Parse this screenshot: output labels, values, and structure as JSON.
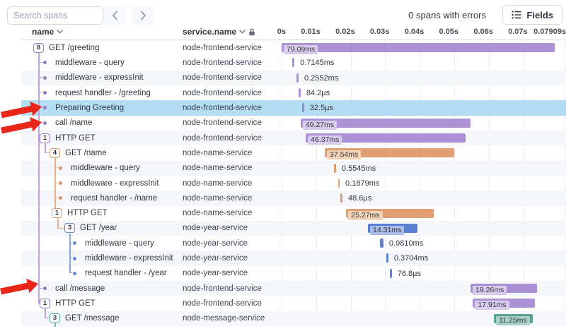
{
  "toolbar": {
    "search_placeholder": "Search spans",
    "errors_text": "0 spans with errors",
    "fields_label": "Fields"
  },
  "columns": {
    "name_label": "name",
    "service_label": "service.name"
  },
  "timeline": {
    "axis_ticks": [
      "0s",
      "0.01s",
      "0.02s",
      "0.03s",
      "0.04s",
      "0.05s",
      "0.06s",
      "0.07s",
      "0.07909s"
    ],
    "total_duration_ms": 79.09
  },
  "colors": {
    "purple_bar": "rgba(142,104,198,0.72)",
    "purple_chip": "#d8ccec",
    "purple_line": "#bda3dd",
    "purple_accent": "#9878c8",
    "orange_bar": "rgba(214,122,61,0.72)",
    "orange_chip": "#f2d3b6",
    "orange_line": "#eab38c",
    "orange_accent": "#dd9468",
    "blue_bar": "rgba(65,107,201,0.85)",
    "blue_chip": "#a9bce7",
    "blue_line": "#85a6de",
    "blue_accent": "#6289d2",
    "teal_bar": "rgba(49,141,119,0.80)",
    "teal_chip": "#a9d0c5",
    "teal_line": "#79baa8",
    "teal_accent": "#55a695",
    "highlight_row": "#b3ddf3",
    "annotation_arrow": "#e8261a"
  },
  "rows": [
    {
      "badge": "8",
      "color": "purple",
      "indent": 17,
      "name": "GET /greeting",
      "service": "node-frontend-service",
      "start_ms": 0,
      "duration_ms": 79.09,
      "duration_label": "79.09ms",
      "label_inside": true
    },
    {
      "dot": true,
      "color": "purple",
      "indent": 31,
      "name": "middleware - query",
      "service": "node-frontend-service",
      "start_ms": 3.0,
      "duration_ms": 0.7145,
      "duration_label": "0.7145ms"
    },
    {
      "dot": true,
      "color": "purple",
      "indent": 31,
      "name": "middleware - expressInit",
      "service": "node-frontend-service",
      "start_ms": 4.4,
      "duration_ms": 0.2552,
      "duration_label": "0.2552ms"
    },
    {
      "dot": true,
      "color": "purple",
      "indent": 31,
      "name": "request handler - /greeting",
      "service": "node-frontend-service",
      "start_ms": 5.0,
      "duration_ms": 0.0842,
      "duration_label": "84.2µs"
    },
    {
      "dot": true,
      "color": "purple",
      "indent": 31,
      "name": "Preparing Greeting",
      "service": "node-frontend-service",
      "start_ms": 6.0,
      "duration_ms": 0.0325,
      "duration_label": "32.5µs",
      "highlighted": true,
      "has_actions": true
    },
    {
      "dot": true,
      "color": "purple",
      "indent": 31,
      "name": "call /name",
      "service": "node-frontend-service",
      "start_ms": 5.5,
      "duration_ms": 49.27,
      "duration_label": "49.27ms",
      "label_inside": true
    },
    {
      "badge": "1",
      "color": "purple",
      "indent": 26,
      "name": "HTTP GET",
      "service": "node-frontend-service",
      "start_ms": 7.0,
      "duration_ms": 46.37,
      "duration_label": "46.37ms",
      "label_inside": true
    },
    {
      "badge": "4",
      "color": "orange",
      "indent": 40,
      "name": "GET /name",
      "service": "node-name-service",
      "start_ms": 12.5,
      "duration_ms": 37.54,
      "duration_label": "37.54ms",
      "label_inside": true
    },
    {
      "dot": true,
      "color": "orange",
      "indent": 53,
      "name": "middleware - query",
      "service": "node-name-service",
      "start_ms": 15.2,
      "duration_ms": 0.5545,
      "duration_label": "0.5545ms"
    },
    {
      "dot": true,
      "color": "orange",
      "indent": 53,
      "name": "middleware - expressInit",
      "service": "node-name-service",
      "start_ms": 16.3,
      "duration_ms": 0.1879,
      "duration_label": "0.1879ms"
    },
    {
      "dot": true,
      "color": "orange",
      "indent": 53,
      "name": "request handler - /name",
      "service": "node-name-service",
      "start_ms": 17.1,
      "duration_ms": 0.0486,
      "duration_label": "48.6µs"
    },
    {
      "badge": "1",
      "color": "orange",
      "indent": 43,
      "name": "HTTP GET",
      "service": "node-name-service",
      "start_ms": 18.7,
      "duration_ms": 25.27,
      "duration_label": "25.27ms",
      "label_inside": true
    },
    {
      "badge": "3",
      "color": "blue",
      "indent": 61,
      "name": "GET /year",
      "service": "node-year-service",
      "start_ms": 25.0,
      "duration_ms": 14.31,
      "duration_label": "14.31ms",
      "label_inside": true
    },
    {
      "dot": true,
      "color": "blue",
      "indent": 73,
      "name": "middleware - query",
      "service": "node-year-service",
      "start_ms": 28.5,
      "duration_ms": 0.981,
      "duration_label": "0.9810ms"
    },
    {
      "dot": true,
      "color": "blue",
      "indent": 73,
      "name": "middleware - expressInit",
      "service": "node-year-service",
      "start_ms": 30.4,
      "duration_ms": 0.3704,
      "duration_label": "0.3704ms"
    },
    {
      "dot": true,
      "color": "blue",
      "indent": 73,
      "name": "request handler - /year",
      "service": "node-year-service",
      "start_ms": 31.4,
      "duration_ms": 0.0768,
      "duration_label": "76.8µs"
    },
    {
      "dot": true,
      "color": "purple",
      "indent": 31,
      "name": "call /message",
      "service": "node-frontend-service",
      "start_ms": 54.7,
      "duration_ms": 19.26,
      "duration_label": "19.26ms",
      "label_inside": true
    },
    {
      "badge": "1",
      "color": "purple",
      "indent": 26,
      "name": "HTTP GET",
      "service": "node-frontend-service",
      "start_ms": 55.4,
      "duration_ms": 17.91,
      "duration_label": "17.91ms",
      "label_inside": true
    },
    {
      "badge": "3",
      "color": "teal",
      "indent": 40,
      "name": "GET /message",
      "service": "node-message-service",
      "start_ms": 61.5,
      "duration_ms": 11.25,
      "duration_label": "11.25ms",
      "label_inside": true
    }
  ],
  "annotations": {
    "description": "red arrows pointing at rows",
    "targets": [
      "Preparing Greeting",
      "call /name",
      "call /message"
    ]
  }
}
